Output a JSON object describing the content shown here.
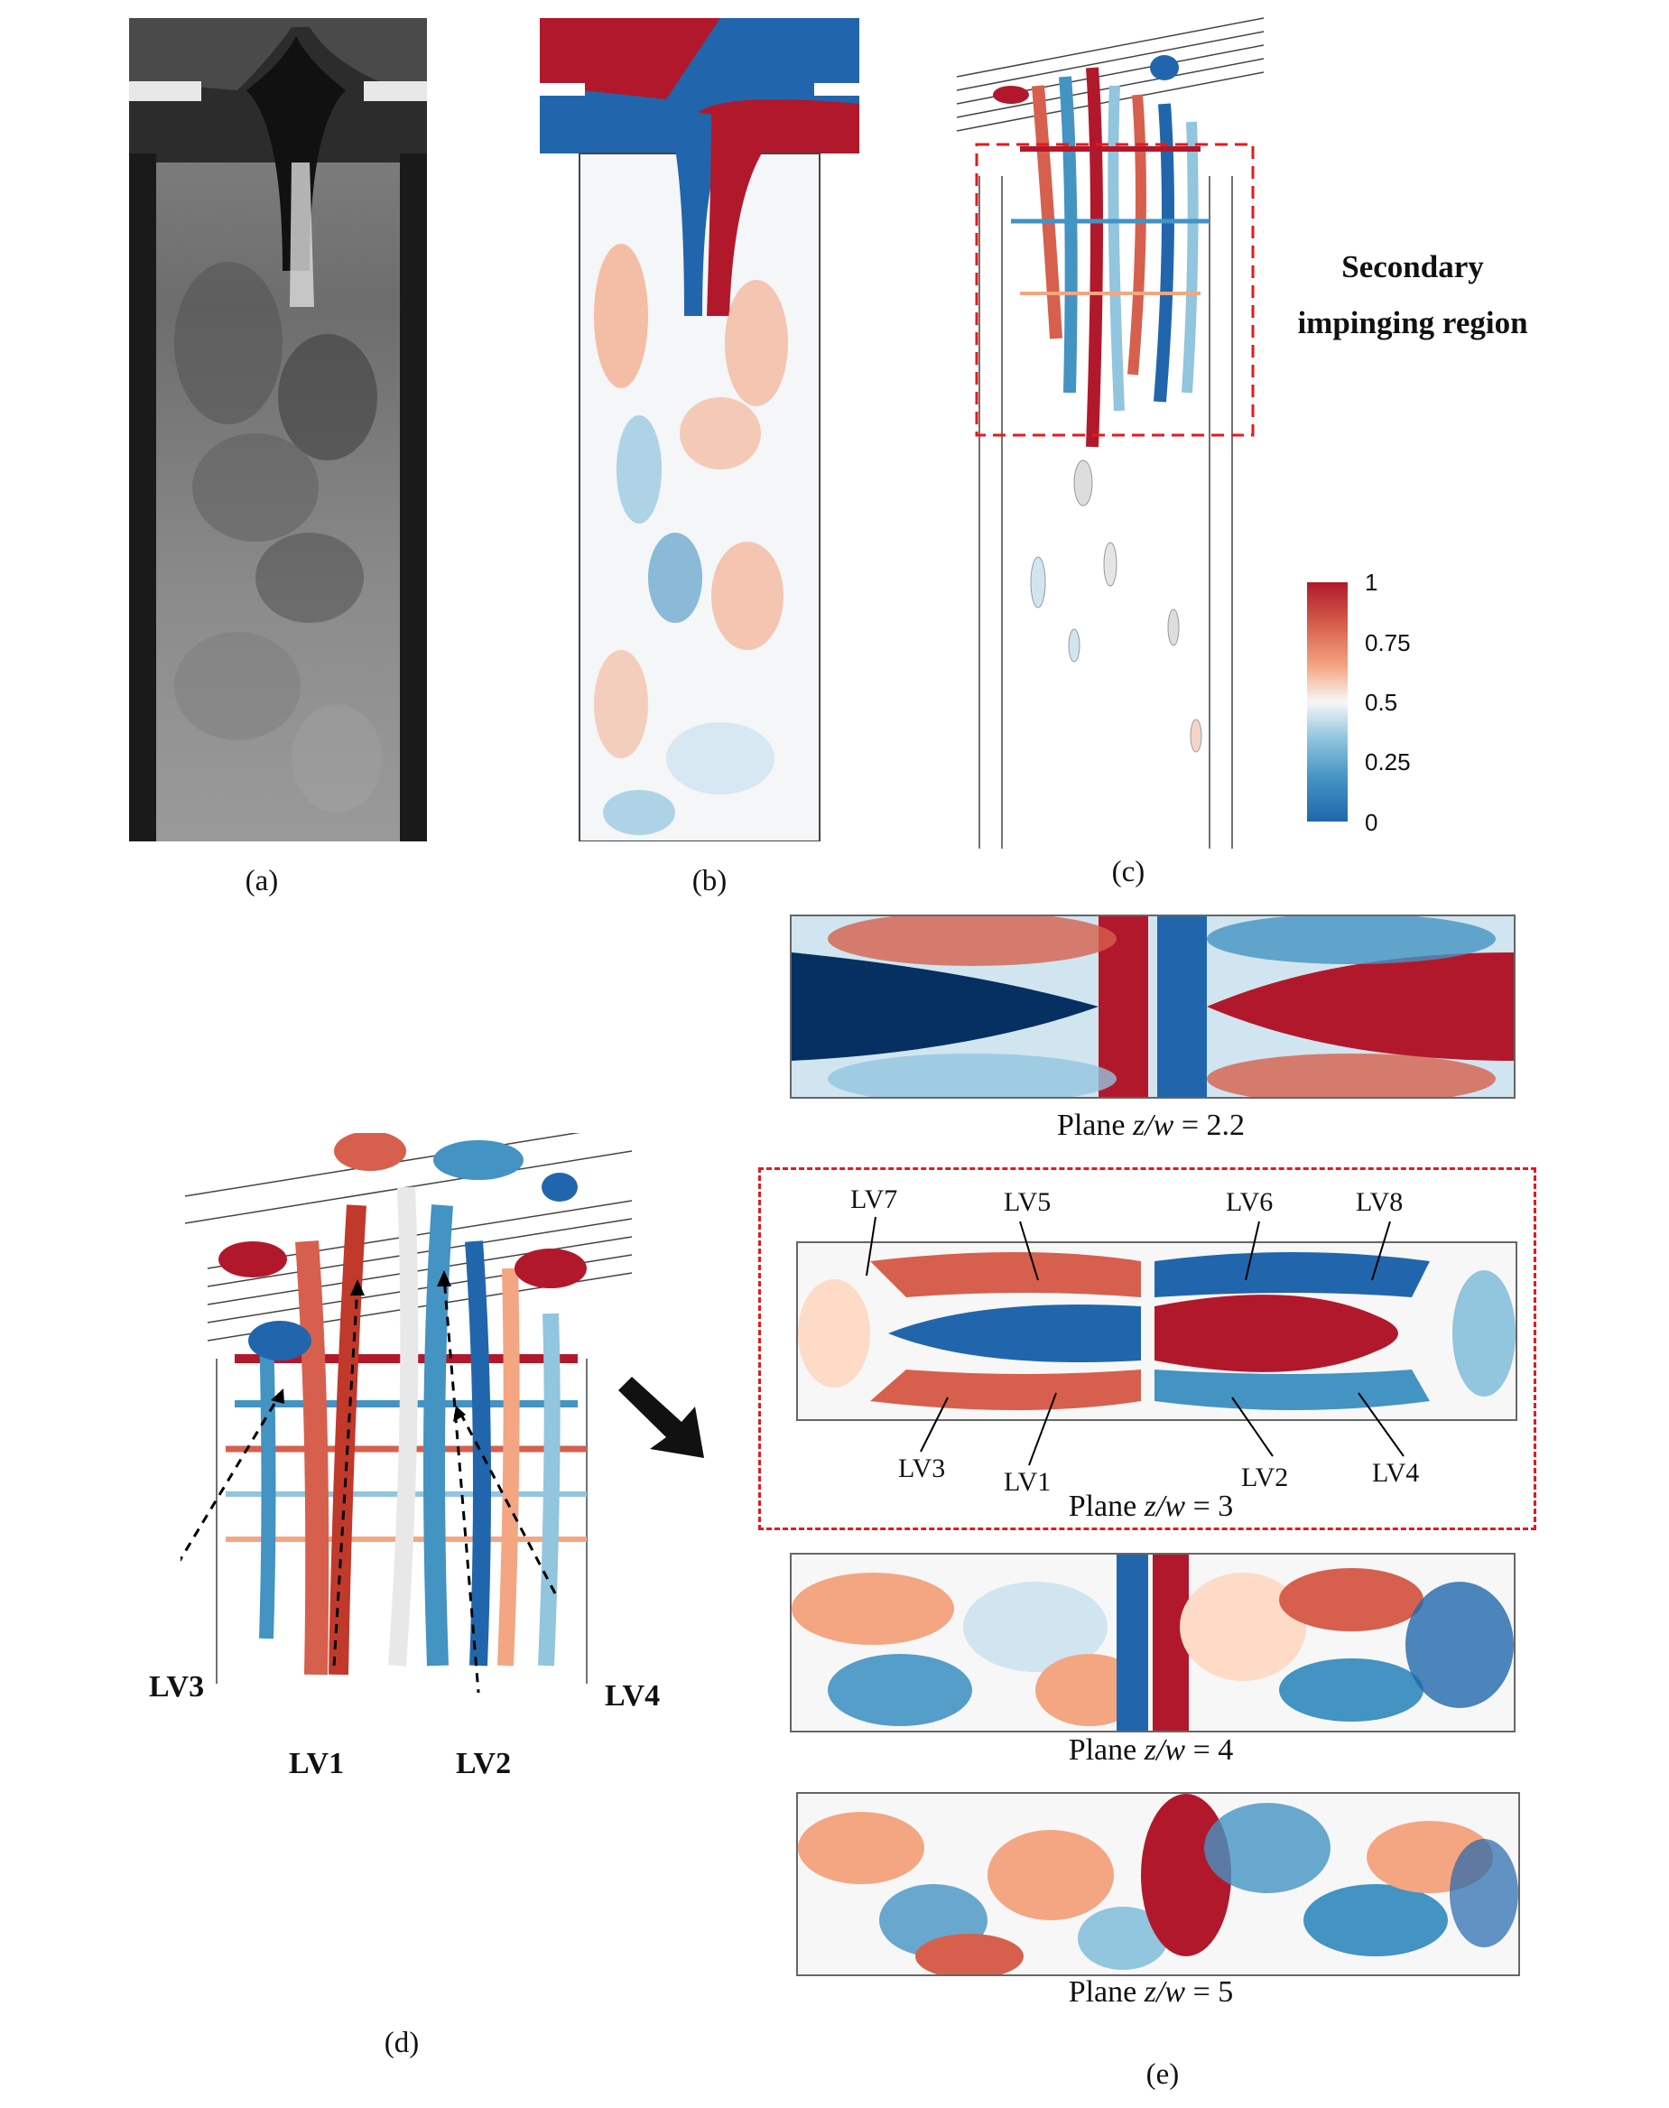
{
  "panels": {
    "a": "(a)",
    "b": "(b)",
    "c": "(c)",
    "d": "(d)",
    "e": "(e)"
  },
  "annotation": {
    "line1": "Secondary",
    "line2": "impinging region"
  },
  "colorbar": {
    "ticks": [
      "1",
      "0.75",
      "0.5",
      "0.25",
      "0"
    ],
    "colors": {
      "high": "#b2182b",
      "mid": "#f7f7f7",
      "low": "#2166ac"
    }
  },
  "planes": [
    {
      "prefix": "Plane ",
      "var": "z/w",
      "suffix": " = 2.2"
    },
    {
      "prefix": "Plane ",
      "var": "z/w",
      "suffix": " = 3"
    },
    {
      "prefix": "Plane ",
      "var": "z/w",
      "suffix": " = 4"
    },
    {
      "prefix": "Plane ",
      "var": "z/w",
      "suffix": " = 5"
    }
  ],
  "vortex_labels_plane": [
    "LV7",
    "LV5",
    "LV6",
    "LV8",
    "LV3",
    "LV1",
    "LV2",
    "LV4"
  ],
  "vortex_labels_iso": [
    "LV3",
    "LV1",
    "LV2",
    "LV4"
  ]
}
